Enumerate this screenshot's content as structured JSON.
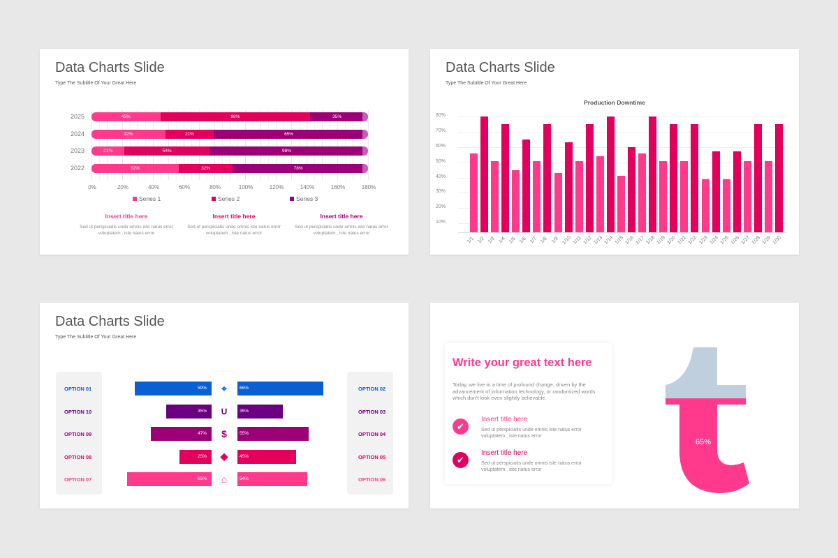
{
  "slides": [
    {
      "title": "Data Charts Slide",
      "subtitle": "Type The Subtitle Of Your Great Here"
    },
    {
      "title": "Data Charts Slide",
      "subtitle": "Type The Subtitle Of Your Great Here"
    },
    {
      "title": "Data Charts Slide",
      "subtitle": "Type The Subtitle Of Your Great Here"
    }
  ],
  "colors": {
    "pink": "#ff3a8c",
    "crimson": "#e3005c",
    "purple": "#9b0077",
    "violet": "#6a0080",
    "blue": "#0a5fd3",
    "gray": "#bfcfde"
  },
  "chart_data": [
    {
      "type": "bar",
      "orientation": "horizontal-stacked",
      "categories": [
        "2025",
        "2024",
        "2023",
        "2022"
      ],
      "series": [
        {
          "name": "Series 1",
          "values": [
            45,
            32,
            21,
            52
          ],
          "labels": [
            "45%",
            "32%",
            "21%",
            "52%"
          ]
        },
        {
          "name": "Series 2",
          "values": [
            98,
            21,
            54,
            32
          ],
          "labels": [
            "98%",
            "21%",
            "54%",
            "32%"
          ]
        },
        {
          "name": "Series 3",
          "values": [
            35,
            65,
            98,
            78
          ],
          "labels": [
            "35%",
            "65%",
            "98%",
            "78%"
          ]
        }
      ],
      "xticks": [
        "0%",
        "20%",
        "40%",
        "60%",
        "80%",
        "100%",
        "120%",
        "140%",
        "160%",
        "180%"
      ],
      "xlim": [
        0,
        180
      ],
      "grid": true,
      "legend": "bottom"
    },
    {
      "type": "bar",
      "title": "Production Downtime",
      "categories": [
        "1/1",
        "1/2",
        "1/3",
        "1/4",
        "1/5",
        "1/6",
        "1/7",
        "1/8",
        "1/9",
        "1/10",
        "1/11",
        "1/12",
        "1/13",
        "1/14",
        "1/15",
        "1/16",
        "1/17",
        "1/18",
        "1/19",
        "1/20",
        "1/21",
        "1/22",
        "1/23",
        "1/24",
        "1/25",
        "1/26",
        "1/27",
        "1/28",
        "1/29",
        "1/30"
      ],
      "values": [
        56,
        80,
        51,
        75,
        45,
        65,
        51,
        75,
        43,
        63,
        51,
        75,
        54,
        80,
        41,
        60,
        56,
        80,
        51,
        75,
        51,
        75,
        39,
        57,
        39,
        57,
        51,
        75,
        51,
        75
      ],
      "yticks": [
        "10%",
        "20%",
        "30%",
        "40%",
        "50%",
        "60%",
        "70%",
        "80%"
      ],
      "ylim": [
        0,
        80
      ],
      "grid": true
    },
    {
      "type": "bar",
      "orientation": "butterfly",
      "rows": [
        {
          "left": "OPTION 01",
          "left_value": 59,
          "left_label": "59%",
          "right": "OPTION 02",
          "right_value": 66,
          "right_label": "66%",
          "icon": "target-icon",
          "color": "#0a5fd3"
        },
        {
          "left": "OPTION 10",
          "left_value": 35,
          "left_label": "35%",
          "right": "OPTION 03",
          "right_value": 35,
          "right_label": "35%",
          "icon": "magnet-icon",
          "color": "#6a0080"
        },
        {
          "left": "OPTION 09",
          "left_value": 47,
          "left_label": "47%",
          "right": "OPTION 04",
          "right_value": 55,
          "right_label": "55%",
          "icon": "dollar-cycle-icon",
          "color": "#9b0077"
        },
        {
          "left": "OPTION 08",
          "left_value": 25,
          "left_label": "25%",
          "right": "OPTION 05",
          "right_value": 45,
          "right_label": "45%",
          "icon": "diamond-icon",
          "color": "#e3005c"
        },
        {
          "left": "OPTION 07",
          "left_value": 65,
          "left_label": "65%",
          "right": "OPTION 06",
          "right_value": 54,
          "right_label": "54%",
          "icon": "house-dollar-icon",
          "color": "#ff3a8c"
        }
      ]
    }
  ],
  "slide1_columns": [
    {
      "title": "Insert title here",
      "text": "Sed ut perspiciatis unde omnis iste natus error voluptatem , iste natus error",
      "color": "#ff3a8c"
    },
    {
      "title": "Insert title here",
      "text": "Sed ut perspiciatis unde omnis iste natus error voluptatem , iste natus error",
      "color": "#e3005c"
    },
    {
      "title": "Insert title here",
      "text": "Sed ut perspiciatis unde omnis iste natus error voluptatem , iste natus error",
      "color": "#9b0077"
    }
  ],
  "slide4": {
    "heading": "Write your great text here",
    "body": "Today, we live in a time of profound change, driven by the advancement of information technology, or randomized words which don't look even slightly believable.",
    "items": [
      {
        "title": "Insert title here",
        "text": "Sed ut perspiciatis unde omnis iste natus error voluptatem , iste natus error",
        "icon": "check-circle-icon"
      },
      {
        "title": "Insert title here",
        "text": "Sed ut perspiciatis unde omnis iste natus error voluptatem , iste natus error",
        "icon": "check-circle-icon"
      }
    ],
    "gauge": {
      "value": 65,
      "label": "65%"
    }
  }
}
